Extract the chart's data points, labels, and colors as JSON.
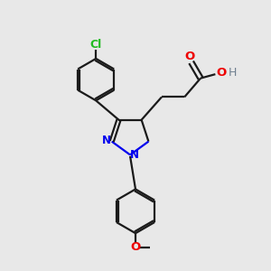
{
  "background_color": "#e8e8e8",
  "bond_color": "#1a1a1a",
  "N_color": "#0000ee",
  "O_color": "#ee0000",
  "Cl_color": "#22bb22",
  "H_color": "#708090",
  "line_width": 1.6,
  "figsize": [
    3.0,
    3.0
  ],
  "dpi": 100,
  "xlim": [
    0,
    10
  ],
  "ylim": [
    0,
    10
  ]
}
